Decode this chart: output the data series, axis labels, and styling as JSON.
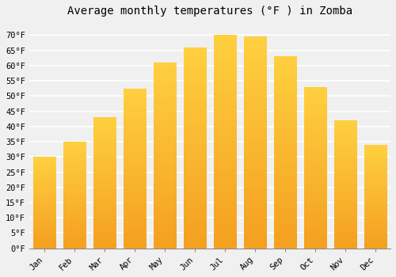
{
  "title": "Average monthly temperatures (°F ) in Zomba",
  "months": [
    "Jan",
    "Feb",
    "Mar",
    "Apr",
    "May",
    "Jun",
    "Jul",
    "Aug",
    "Sep",
    "Oct",
    "Nov",
    "Dec"
  ],
  "values": [
    30,
    35,
    43,
    52.5,
    61,
    66,
    70,
    69.5,
    63,
    53,
    42,
    34
  ],
  "bar_color_top": "#FFD040",
  "bar_color_bottom": "#F5A020",
  "ylim": [
    0,
    74
  ],
  "yticks": [
    0,
    5,
    10,
    15,
    20,
    25,
    30,
    35,
    40,
    45,
    50,
    55,
    60,
    65,
    70
  ],
  "ytick_labels": [
    "0°F",
    "5°F",
    "10°F",
    "15°F",
    "20°F",
    "25°F",
    "30°F",
    "35°F",
    "40°F",
    "45°F",
    "50°F",
    "55°F",
    "60°F",
    "65°F",
    "70°F"
  ],
  "background_color": "#f0f0f0",
  "grid_color": "#ffffff",
  "title_fontsize": 10,
  "tick_fontsize": 7.5,
  "bar_width": 0.75,
  "font_family": "monospace"
}
